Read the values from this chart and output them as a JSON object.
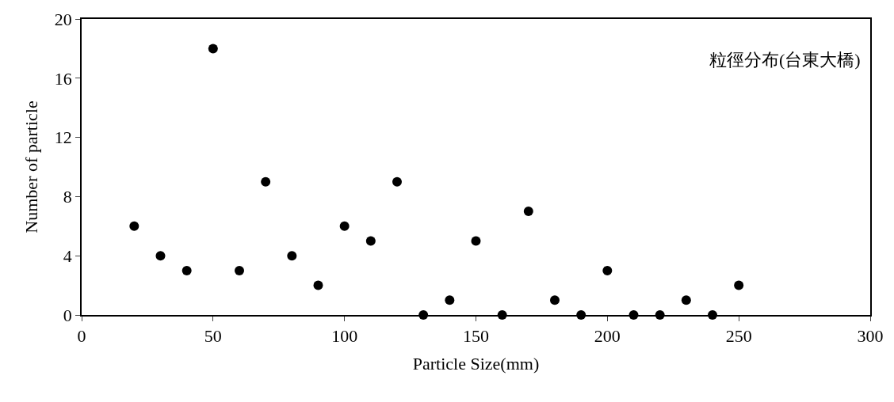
{
  "chart_data": {
    "type": "scatter",
    "xlabel": "Particle Size(mm)",
    "ylabel": "Number of particle",
    "annotations": [
      "粒徑分布(台東大橋)"
    ],
    "x": [
      20,
      30,
      40,
      50,
      60,
      70,
      80,
      90,
      100,
      110,
      120,
      130,
      140,
      150,
      160,
      170,
      180,
      190,
      200,
      210,
      220,
      230,
      240,
      250
    ],
    "series": [
      {
        "color": "#000000",
        "values": [
          6,
          4,
          3,
          18,
          3,
          9,
          4,
          2,
          6,
          5,
          9,
          0,
          1,
          5,
          0,
          7,
          1,
          0,
          3,
          0,
          0,
          1,
          0,
          2
        ]
      }
    ],
    "xlim": [
      0,
      300
    ],
    "xticks": [
      0,
      50,
      100,
      150,
      200,
      250,
      300
    ],
    "ylim": [
      0,
      20
    ],
    "yticks": [
      0,
      4,
      8,
      12,
      16,
      20
    ],
    "marker": "circle"
  }
}
